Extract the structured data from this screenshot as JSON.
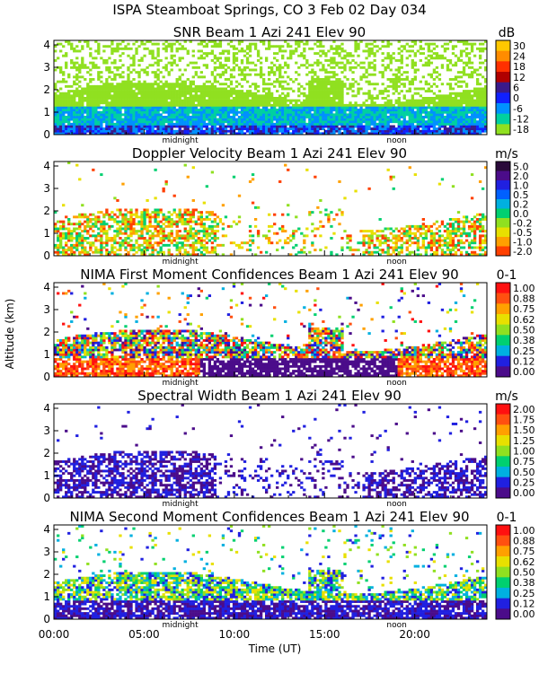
{
  "header": {
    "line1": "ISPA Steamboat Springs, CO    3 Feb 02 Day 034"
  },
  "axes": {
    "ylabel": "Altitude (km)",
    "xlabel": "Time (UT)",
    "x_tick_labels": [
      "00:00",
      "05:00",
      "10:00",
      "15:00",
      "20:00"
    ],
    "y_tick_labels": [
      "0",
      "1",
      "2",
      "3",
      "4"
    ],
    "marker_labels": [
      "midnight",
      "noon"
    ]
  },
  "chart_data": [
    {
      "type": "heatmap",
      "title": "SNR Beam 1 Azi 241 Elev 90",
      "colorbar_unit": "dB",
      "colorbar_labels": [
        "30",
        "24",
        "18",
        "12",
        "6",
        "0",
        "-6",
        "-12",
        "-18"
      ],
      "colors": [
        "#ffc800",
        "#ff8c00",
        "#ff3000",
        "#b00000",
        "#3a1a8a",
        "#1020ff",
        "#0090ff",
        "#00d0a0",
        "#90e020"
      ],
      "x_range_hours": [
        0,
        24
      ],
      "y_range_km": [
        0,
        4.2
      ]
    },
    {
      "type": "heatmap",
      "title": "Doppler Velocity Beam 1 Azi 241 Elev 90",
      "colorbar_unit": "m/s",
      "colorbar_labels": [
        "5.0",
        "2.0",
        "1.0",
        "0.5",
        "0.2",
        "0.0",
        "-0.2",
        "-0.5",
        "-1.0",
        "-2.0"
      ],
      "colors": [
        "#2a0a3a",
        "#4b0c8a",
        "#2020e0",
        "#0060ff",
        "#00b0e0",
        "#00d070",
        "#90e020",
        "#e8e000",
        "#ffa000",
        "#ff4000"
      ],
      "x_range_hours": [
        0,
        24
      ],
      "y_range_km": [
        0,
        4.2
      ]
    },
    {
      "type": "heatmap",
      "title": "NIMA First Moment Confidences Beam 1 Azi 241 Elev 90",
      "colorbar_unit": "0-1",
      "colorbar_labels": [
        "1.00",
        "0.88",
        "0.75",
        "0.62",
        "0.50",
        "0.38",
        "0.25",
        "0.12",
        "0.00"
      ],
      "colors": [
        "#ff1010",
        "#ff5010",
        "#ffa000",
        "#e8e000",
        "#90e020",
        "#00d070",
        "#00b0e0",
        "#2020e0",
        "#4b0c8a"
      ],
      "x_range_hours": [
        0,
        24
      ],
      "y_range_km": [
        0,
        4.2
      ]
    },
    {
      "type": "heatmap",
      "title": "Spectral Width Beam 1 Azi 241 Elev 90",
      "colorbar_unit": "m/s",
      "colorbar_labels": [
        "2.00",
        "1.75",
        "1.50",
        "1.25",
        "1.00",
        "0.75",
        "0.50",
        "0.25",
        "0.00"
      ],
      "colors": [
        "#ff1010",
        "#ff5010",
        "#ffa000",
        "#e8e000",
        "#90e020",
        "#00d070",
        "#00b0e0",
        "#2020e0",
        "#4b0c8a"
      ],
      "x_range_hours": [
        0,
        24
      ],
      "y_range_km": [
        0,
        4.2
      ]
    },
    {
      "type": "heatmap",
      "title": "NIMA Second Moment Confidences Beam 1 Azi 241 Elev 90",
      "colorbar_unit": "0-1",
      "colorbar_labels": [
        "1.00",
        "0.88",
        "0.75",
        "0.62",
        "0.50",
        "0.38",
        "0.25",
        "0.12",
        "0.00"
      ],
      "colors": [
        "#ff1010",
        "#ff5010",
        "#ffa000",
        "#e8e000",
        "#90e020",
        "#00d070",
        "#00b0e0",
        "#2020e0",
        "#4b0c8a"
      ],
      "x_range_hours": [
        0,
        24
      ],
      "y_range_km": [
        0,
        4.2
      ]
    }
  ]
}
